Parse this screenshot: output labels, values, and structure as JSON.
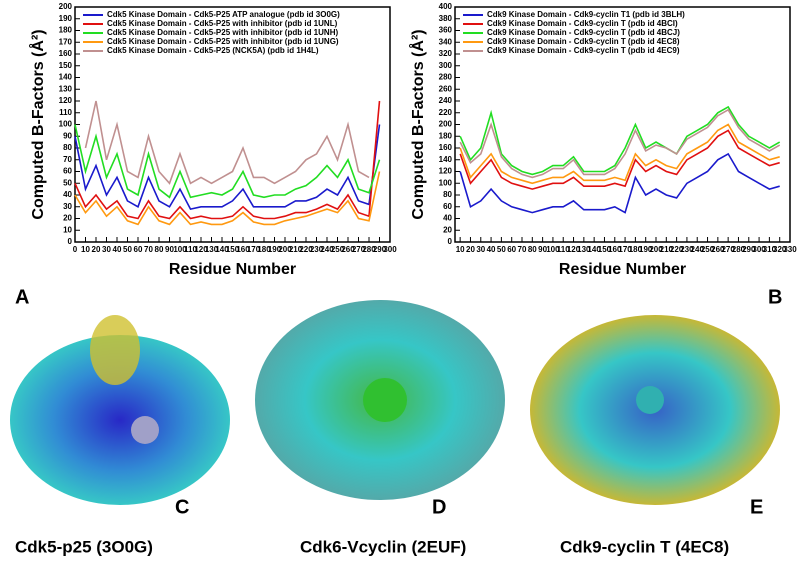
{
  "chart_data": [
    {
      "type": "line",
      "xlabel": "Residue Number",
      "ylabel": "Computed B-Factors (Å²)",
      "xlim": [
        0,
        300
      ],
      "ylim": [
        0,
        200
      ],
      "xticks": [
        0,
        10,
        20,
        30,
        40,
        50,
        60,
        70,
        80,
        90,
        100,
        110,
        120,
        130,
        140,
        150,
        160,
        170,
        180,
        190,
        200,
        210,
        220,
        230,
        240,
        250,
        260,
        270,
        280,
        290,
        300
      ],
      "yticks": [
        0,
        10,
        20,
        30,
        40,
        50,
        60,
        70,
        80,
        90,
        100,
        110,
        120,
        130,
        140,
        150,
        160,
        170,
        180,
        190,
        200
      ],
      "legend": "upper left",
      "x": [
        0,
        10,
        20,
        30,
        40,
        50,
        60,
        70,
        80,
        90,
        100,
        110,
        120,
        130,
        140,
        150,
        160,
        170,
        180,
        190,
        200,
        210,
        220,
        230,
        240,
        250,
        260,
        270,
        280,
        290
      ],
      "series": [
        {
          "name": "Cdk5 Kinase Domain - Cdk5-P25 ATP analogue (pdb id 3O0G)",
          "color": "#1a1acc",
          "values": [
            90,
            45,
            65,
            40,
            55,
            35,
            30,
            55,
            35,
            30,
            45,
            28,
            30,
            30,
            30,
            35,
            45,
            30,
            30,
            30,
            30,
            35,
            35,
            38,
            45,
            40,
            55,
            35,
            32,
            100
          ]
        },
        {
          "name": "Cdk5 Kinase Domain - Cdk5-P25  with inhibitor (pdb id 1UNL)",
          "color": "#e01010",
          "values": [
            50,
            30,
            40,
            28,
            35,
            22,
            20,
            35,
            22,
            20,
            30,
            20,
            22,
            20,
            20,
            22,
            30,
            22,
            20,
            20,
            22,
            25,
            25,
            28,
            32,
            28,
            40,
            25,
            22,
            120
          ]
        },
        {
          "name": "Cdk5 Kinase Domain - Cdk5-P25  with inhibitor (pdb id 1UNH)",
          "color": "#22dd22",
          "values": [
            100,
            60,
            90,
            55,
            75,
            45,
            40,
            75,
            45,
            38,
            60,
            38,
            40,
            42,
            40,
            45,
            60,
            40,
            38,
            40,
            40,
            45,
            48,
            55,
            65,
            55,
            70,
            45,
            42,
            70
          ]
        },
        {
          "name": "Cdk5 Kinase Domain - Cdk5-P25  with inhibitor (pdb id 1UNG)",
          "color": "#ff9910",
          "values": [
            40,
            25,
            35,
            22,
            30,
            18,
            15,
            30,
            18,
            15,
            25,
            15,
            17,
            15,
            15,
            18,
            25,
            17,
            15,
            15,
            18,
            20,
            22,
            25,
            28,
            25,
            35,
            20,
            18,
            60
          ]
        },
        {
          "name": "Cdk5 Kinase Domain - Cdk5-P25 (NCK5A)  (pdb id 1H4L)",
          "color": "#c09090",
          "values": [
            null,
            80,
            120,
            70,
            100,
            60,
            55,
            90,
            60,
            50,
            75,
            50,
            55,
            50,
            55,
            60,
            80,
            55,
            55,
            50,
            55,
            60,
            70,
            75,
            90,
            70,
            100,
            60,
            55,
            null
          ]
        }
      ]
    },
    {
      "type": "line",
      "xlabel": "Residue Number",
      "ylabel": "Computed B-Factors (Å²)",
      "xlim": [
        5,
        330
      ],
      "ylim": [
        0,
        400
      ],
      "xticks": [
        10,
        20,
        30,
        40,
        50,
        60,
        70,
        80,
        90,
        100,
        110,
        120,
        130,
        140,
        150,
        160,
        170,
        180,
        190,
        200,
        210,
        220,
        230,
        240,
        250,
        260,
        270,
        280,
        290,
        300,
        310,
        320,
        330
      ],
      "yticks": [
        0,
        20,
        40,
        60,
        80,
        100,
        120,
        140,
        160,
        180,
        200,
        220,
        240,
        260,
        280,
        300,
        320,
        340,
        360,
        380,
        400
      ],
      "legend": "upper left",
      "x": [
        10,
        20,
        30,
        40,
        50,
        60,
        70,
        80,
        90,
        100,
        110,
        120,
        130,
        140,
        150,
        160,
        170,
        180,
        190,
        200,
        210,
        220,
        230,
        240,
        250,
        260,
        270,
        280,
        290,
        300,
        310,
        320
      ],
      "series": [
        {
          "name": "Cdk9 Kinase Domain - Cdk9-cyclin T1 (pdb id 3BLH)",
          "color": "#1a1acc",
          "values": [
            120,
            60,
            70,
            90,
            70,
            60,
            55,
            50,
            55,
            60,
            60,
            70,
            55,
            55,
            55,
            60,
            50,
            110,
            80,
            90,
            80,
            75,
            100,
            110,
            120,
            140,
            150,
            120,
            110,
            100,
            90,
            95
          ]
        },
        {
          "name": "Cdk9 Kinase Domain - Cdk9-cyclin T  (pdb id 4BCI)",
          "color": "#e01010",
          "values": [
            150,
            100,
            120,
            140,
            110,
            100,
            95,
            90,
            95,
            100,
            100,
            110,
            95,
            95,
            95,
            100,
            95,
            140,
            120,
            130,
            120,
            115,
            140,
            150,
            160,
            180,
            190,
            160,
            150,
            140,
            130,
            135
          ]
        },
        {
          "name": "Cdk9 Kinase Domain - Cdk9-cyclin T  (pdb id 4BCJ)",
          "color": "#22dd22",
          "values": [
            180,
            140,
            160,
            220,
            150,
            130,
            120,
            115,
            120,
            130,
            130,
            145,
            120,
            120,
            120,
            130,
            160,
            200,
            160,
            170,
            160,
            150,
            180,
            190,
            200,
            220,
            230,
            200,
            180,
            170,
            160,
            170
          ]
        },
        {
          "name": "Cdk9 Kinase Domain - Cdk9-cyclin T  (pdb id 4EC8)",
          "color": "#ff9910",
          "values": [
            160,
            110,
            130,
            150,
            120,
            110,
            105,
            100,
            105,
            110,
            110,
            120,
            105,
            105,
            105,
            110,
            105,
            150,
            130,
            140,
            130,
            125,
            150,
            160,
            170,
            190,
            200,
            170,
            160,
            150,
            140,
            145
          ]
        },
        {
          "name": "Cdk9 Kinase Domain - Cdk9-cyclin T  (pdb id 4EC9)",
          "color": "#c09090",
          "values": [
            170,
            135,
            150,
            200,
            145,
            125,
            115,
            110,
            115,
            125,
            125,
            140,
            115,
            115,
            115,
            125,
            150,
            190,
            155,
            165,
            160,
            150,
            175,
            185,
            195,
            215,
            225,
            195,
            175,
            165,
            155,
            165
          ]
        }
      ]
    }
  ],
  "figure": {
    "panel_labels": [
      "A",
      "B",
      "C",
      "D",
      "E"
    ],
    "captions": [
      "Cdk5-p25 (3O0G)",
      "Cdk6-Vcyclin (2EUF)",
      "Cdk9-cyclin T (4EC8)"
    ]
  }
}
